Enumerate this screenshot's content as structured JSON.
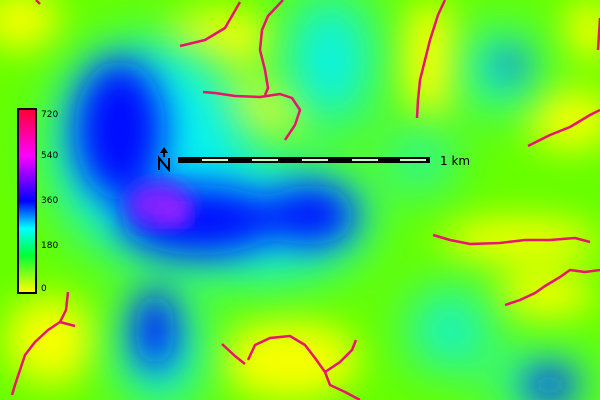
{
  "legend": {
    "ticks": [
      "720",
      "540",
      "360",
      "180",
      "0"
    ],
    "colors": [
      "#ff0033",
      "#ff00ff",
      "#0000ff",
      "#00ffff",
      "#00ff33",
      "#ffff00"
    ]
  },
  "scalebar": {
    "label": "1 km"
  },
  "north_arrow": {
    "icon": "north-arrow-icon",
    "glyph": "N"
  },
  "stream_color": "#e8146e"
}
